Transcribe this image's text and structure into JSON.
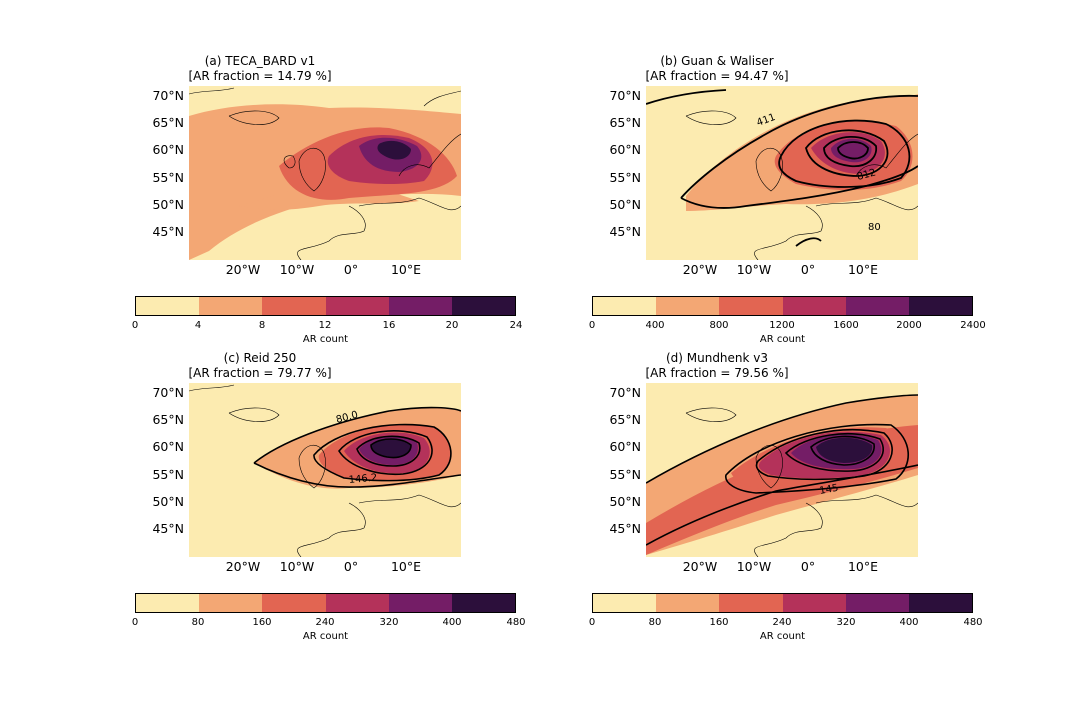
{
  "colors": [
    "#fcebb0",
    "#f3a774",
    "#e26552",
    "#b4325a",
    "#741d66",
    "#2c0f3b"
  ],
  "lat_labels": [
    "70°N",
    "65°N",
    "60°N",
    "55°N",
    "50°N",
    "45°N"
  ],
  "lon_labels": [
    "20°W",
    "10°W",
    "0°",
    "10°E"
  ],
  "panels": [
    {
      "title": "(a) TECA_BARD v1",
      "subtitle": "[AR fraction = 14.79 %]",
      "colorbar_ticks": [
        "0",
        "4",
        "8",
        "12",
        "16",
        "20",
        "24"
      ],
      "colorbar_label": "AR count",
      "contour_labels": []
    },
    {
      "title": "(b) Guan & Waliser",
      "subtitle": "[AR fraction = 94.47 %]",
      "colorbar_ticks": [
        "0",
        "400",
        "800",
        "1200",
        "1600",
        "2000",
        "2400"
      ],
      "colorbar_label": "AR count",
      "contour_labels": [
        "411",
        "812",
        "80"
      ]
    },
    {
      "title": "(c) Reid 250",
      "subtitle": "[AR fraction = 79.77 %]",
      "colorbar_ticks": [
        "0",
        "80",
        "160",
        "240",
        "320",
        "400",
        "480"
      ],
      "colorbar_label": "AR count",
      "contour_labels": [
        "80.0",
        "146.2"
      ]
    },
    {
      "title": "(d) Mundhenk v3",
      "subtitle": "[AR fraction = 79.56 %]",
      "colorbar_ticks": [
        "0",
        "80",
        "160",
        "240",
        "320",
        "400",
        "480"
      ],
      "colorbar_label": "AR count",
      "contour_labels": [
        "145"
      ]
    }
  ]
}
